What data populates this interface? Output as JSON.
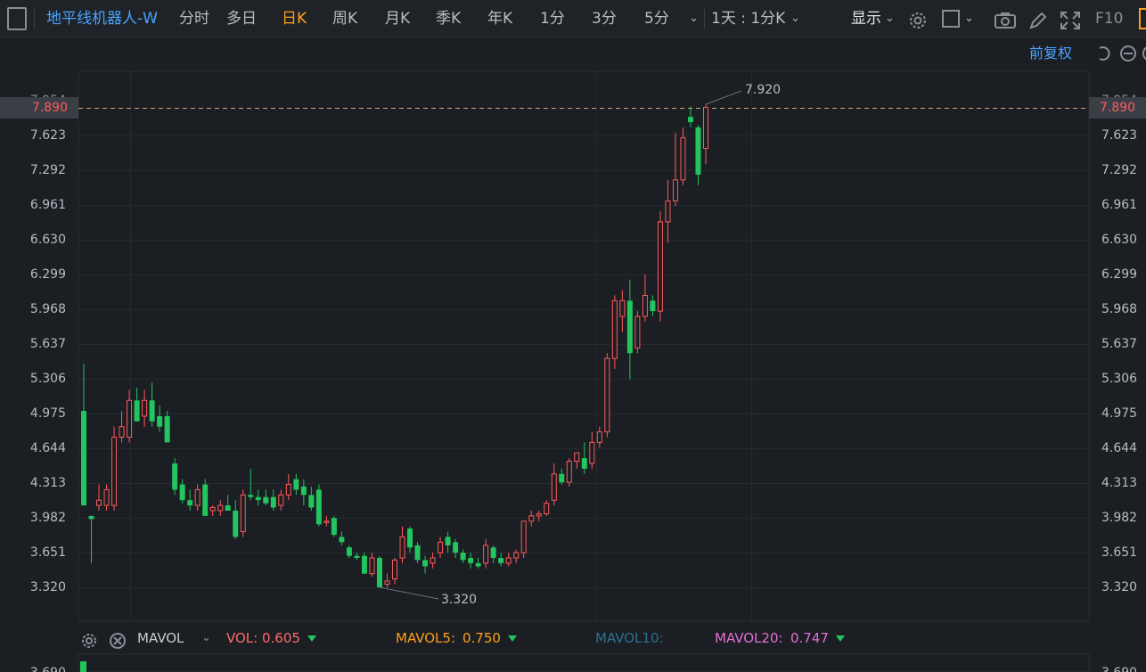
{
  "toolbar": {
    "stock_name": "地平线机器人-W",
    "tabs": [
      "分时",
      "多日",
      "日K",
      "周K",
      "月K",
      "季K",
      "年K",
      "1分",
      "3分",
      "5分"
    ],
    "active_tab": "日K",
    "period": "1天 : 1分K",
    "display": "显示",
    "f10": "F10"
  },
  "sub_toolbar": {
    "adjust": "前复权"
  },
  "chart_data": {
    "type": "candlestick",
    "y_ticks": [
      "7.623",
      "7.292",
      "6.961",
      "6.630",
      "6.299",
      "5.968",
      "5.637",
      "5.306",
      "4.975",
      "4.644",
      "4.313",
      "3.982",
      "3.651",
      "3.320"
    ],
    "y_top_partial": "7.954",
    "current_price": "7.890",
    "max_label": "7.920",
    "min_label": "3.320",
    "candles": [
      [
        5.0,
        5.45,
        4.1,
        4.1
      ],
      [
        4.0,
        4.0,
        3.55,
        3.97
      ],
      [
        4.1,
        4.3,
        4.05,
        4.15
      ],
      [
        4.1,
        4.3,
        4.05,
        4.25
      ],
      [
        4.1,
        4.85,
        4.05,
        4.75
      ],
      [
        4.75,
        5.0,
        4.7,
        4.85
      ],
      [
        4.75,
        5.2,
        4.7,
        5.1
      ],
      [
        5.1,
        5.22,
        4.9,
        4.9
      ],
      [
        4.95,
        5.2,
        4.85,
        5.1
      ],
      [
        5.1,
        5.27,
        4.85,
        4.9
      ],
      [
        4.95,
        5.05,
        4.8,
        4.85
      ],
      [
        4.95,
        5.0,
        4.7,
        4.7
      ],
      [
        4.5,
        4.55,
        4.2,
        4.25
      ],
      [
        4.3,
        4.35,
        4.12,
        4.15
      ],
      [
        4.15,
        4.25,
        4.05,
        4.1
      ],
      [
        4.1,
        4.3,
        4.05,
        4.25
      ],
      [
        4.3,
        4.35,
        4.0,
        4.0
      ],
      [
        4.05,
        4.1,
        4.0,
        4.08
      ],
      [
        4.05,
        4.15,
        4.0,
        4.1
      ],
      [
        4.1,
        4.2,
        4.05,
        4.05
      ],
      [
        4.05,
        4.15,
        3.78,
        3.8
      ],
      [
        3.85,
        4.25,
        3.8,
        4.2
      ],
      [
        4.2,
        4.45,
        4.15,
        4.18
      ],
      [
        4.18,
        4.25,
        4.1,
        4.15
      ],
      [
        4.18,
        4.25,
        4.1,
        4.12
      ],
      [
        4.18,
        4.25,
        4.05,
        4.08
      ],
      [
        4.1,
        4.25,
        4.05,
        4.2
      ],
      [
        4.2,
        4.4,
        4.15,
        4.3
      ],
      [
        4.35,
        4.4,
        4.2,
        4.25
      ],
      [
        4.28,
        4.35,
        4.1,
        4.2
      ],
      [
        4.2,
        4.28,
        4.05,
        4.08
      ],
      [
        4.25,
        4.3,
        3.9,
        3.92
      ],
      [
        3.95,
        4.0,
        3.9,
        3.95
      ],
      [
        3.98,
        4.0,
        3.8,
        3.82
      ],
      [
        3.8,
        3.85,
        3.72,
        3.75
      ],
      [
        3.7,
        3.72,
        3.6,
        3.62
      ],
      [
        3.62,
        3.65,
        3.58,
        3.6
      ],
      [
        3.62,
        3.65,
        3.45,
        3.45
      ],
      [
        3.45,
        3.65,
        3.42,
        3.6
      ],
      [
        3.6,
        3.62,
        3.32,
        3.32
      ],
      [
        3.35,
        3.45,
        3.32,
        3.38
      ],
      [
        3.4,
        3.6,
        3.35,
        3.58
      ],
      [
        3.6,
        3.9,
        3.55,
        3.8
      ],
      [
        3.88,
        3.9,
        3.65,
        3.7
      ],
      [
        3.72,
        3.75,
        3.55,
        3.58
      ],
      [
        3.58,
        3.62,
        3.45,
        3.52
      ],
      [
        3.55,
        3.65,
        3.5,
        3.6
      ],
      [
        3.65,
        3.8,
        3.6,
        3.75
      ],
      [
        3.8,
        3.85,
        3.65,
        3.72
      ],
      [
        3.75,
        3.78,
        3.6,
        3.65
      ],
      [
        3.65,
        3.68,
        3.55,
        3.58
      ],
      [
        3.6,
        3.65,
        3.5,
        3.55
      ],
      [
        3.55,
        3.6,
        3.5,
        3.52
      ],
      [
        3.55,
        3.78,
        3.5,
        3.72
      ],
      [
        3.7,
        3.72,
        3.55,
        3.6
      ],
      [
        3.6,
        3.65,
        3.52,
        3.55
      ],
      [
        3.55,
        3.65,
        3.52,
        3.6
      ],
      [
        3.6,
        3.68,
        3.55,
        3.65
      ],
      [
        3.65,
        3.95,
        3.6,
        3.95
      ],
      [
        3.95,
        4.05,
        3.9,
        4.0
      ],
      [
        4.0,
        4.05,
        3.95,
        4.02
      ],
      [
        4.02,
        4.15,
        4.0,
        4.12
      ],
      [
        4.15,
        4.5,
        4.1,
        4.4
      ],
      [
        4.4,
        4.45,
        4.3,
        4.32
      ],
      [
        4.32,
        4.55,
        4.28,
        4.52
      ],
      [
        4.52,
        4.6,
        4.45,
        4.6
      ],
      [
        4.55,
        4.7,
        4.4,
        4.45
      ],
      [
        4.5,
        4.8,
        4.45,
        4.7
      ],
      [
        4.7,
        4.85,
        4.65,
        4.8
      ],
      [
        4.8,
        5.55,
        4.75,
        5.5
      ],
      [
        5.5,
        6.1,
        5.4,
        6.05
      ],
      [
        5.9,
        6.15,
        5.75,
        6.05
      ],
      [
        6.05,
        6.25,
        5.3,
        5.55
      ],
      [
        5.6,
        5.95,
        5.55,
        5.9
      ],
      [
        5.9,
        6.3,
        5.85,
        6.1
      ],
      [
        6.05,
        6.1,
        5.9,
        5.95
      ],
      [
        5.95,
        6.9,
        5.85,
        6.8
      ],
      [
        6.8,
        7.2,
        6.6,
        7.0
      ],
      [
        7.0,
        7.65,
        6.95,
        7.2
      ],
      [
        7.2,
        7.7,
        7.15,
        7.6
      ],
      [
        7.8,
        7.9,
        7.7,
        7.75
      ],
      [
        7.7,
        7.72,
        7.15,
        7.25
      ],
      [
        7.5,
        7.92,
        7.35,
        7.89
      ]
    ]
  },
  "vol_bar": {
    "mavol": "MAVOL",
    "vol_label": "VOL:",
    "vol_value": "0.605",
    "mavol5_label": "MAVOL5:",
    "mavol5_value": "0.750",
    "mavol10_label": "MAVOL10:",
    "mavol20_label": "MAVOL20:",
    "mavol20_value": "0.747"
  },
  "vol_axis_partial": "3.690",
  "colors": {
    "up": "#ff5a5a",
    "down": "#22c55e",
    "accent": "#ff9f1a",
    "link": "#4aa3ff"
  }
}
